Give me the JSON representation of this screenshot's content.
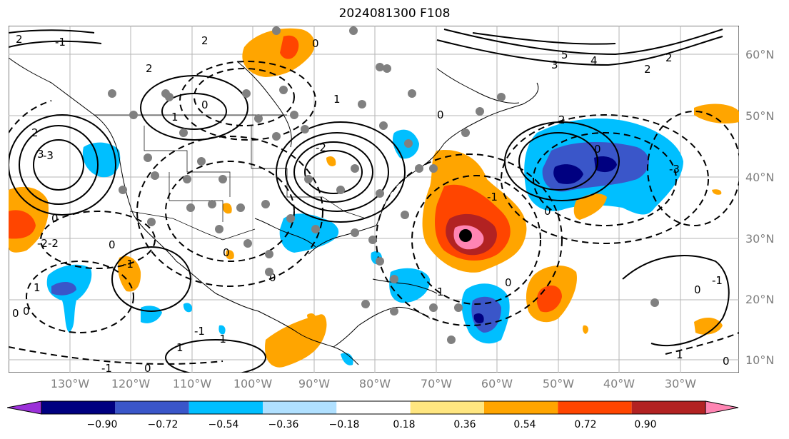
{
  "title": "2024081300 F108",
  "lat_labels": [
    "60°N",
    "50°N",
    "40°N",
    "30°N",
    "20°N",
    "10°N"
  ],
  "lon_labels": [
    "130°W",
    "120°W",
    "110°W",
    "100°W",
    "90°W",
    "80°W",
    "70°W",
    "60°W",
    "50°W",
    "40°W",
    "30°W"
  ],
  "colorbar": {
    "ticks": [
      "−0.90",
      "−0.72",
      "−0.54",
      "−0.36",
      "−0.18",
      "0.18",
      "0.36",
      "0.54",
      "0.72",
      "0.90"
    ],
    "colors": [
      "#9b30d9",
      "#000080",
      "#3a56c9",
      "#00bfff",
      "#b0e0ff",
      "#ffffff",
      "#ffe680",
      "#ffa500",
      "#ff4500",
      "#b22222",
      "#ff85b3"
    ]
  },
  "contour_labels": [
    "2",
    "2",
    "2",
    "2",
    "1",
    "1",
    "5",
    "4",
    "3",
    "2",
    "2",
    "0",
    "0",
    "0",
    "0",
    "1",
    "1",
    "1",
    "2",
    "3",
    "0",
    "0",
    "0",
    "0",
    "-1",
    "-1",
    "-2",
    "-2",
    "-3",
    "-1",
    "0",
    "1",
    "0",
    "0",
    "-1",
    "-1",
    "0",
    "-3",
    "-2",
    "-1",
    "0",
    "0",
    "0",
    "-1"
  ],
  "map_features": {
    "shading": "colour-filled anomaly field",
    "contours": "solid positive and dashed negative contours",
    "markers": "grey station dots",
    "center_marker": "black dot at cyclone centre"
  }
}
